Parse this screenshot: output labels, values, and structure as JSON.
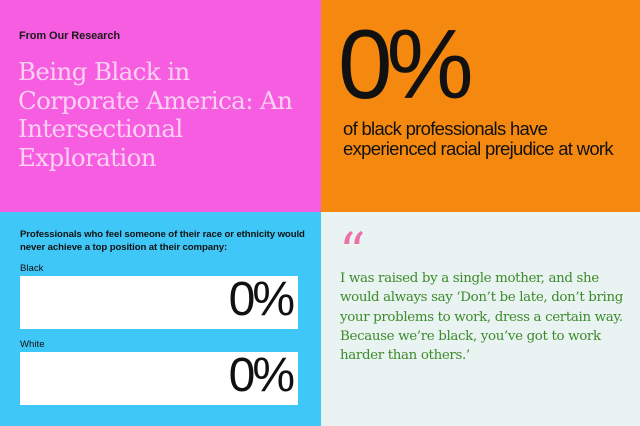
{
  "header": {
    "eyebrow": "From Our Research",
    "title": "Being Black in Corporate America: An Intersectional Exploration"
  },
  "stat": {
    "value": "0%",
    "description": "of black professionals have experienced racial prejudice at work"
  },
  "survey": {
    "question": "Professionals who feel someone of their race or ethnicity would never achieve a top position at their company:",
    "bars": [
      {
        "label": "Black",
        "value_text": "0%",
        "fraction": 0
      },
      {
        "label": "White",
        "value_text": "0%",
        "fraction": 0
      }
    ]
  },
  "quote": {
    "mark": "“",
    "text": "I was raised by a single mother, and she  would always say ‘Don’t be late, don’t  bring your problems to work, dress  a certain way. Because we’re black,  you’ve got to work harder than others.’"
  },
  "colors": {
    "magenta": "#f75de0",
    "orange": "#f5880e",
    "cyan": "#3fc8f7",
    "pale_mint": "#e8f3f2",
    "title_pink": "#fad1f3",
    "quote_green": "#3e8a2c",
    "quote_mark_pink": "#ec6fa8"
  }
}
